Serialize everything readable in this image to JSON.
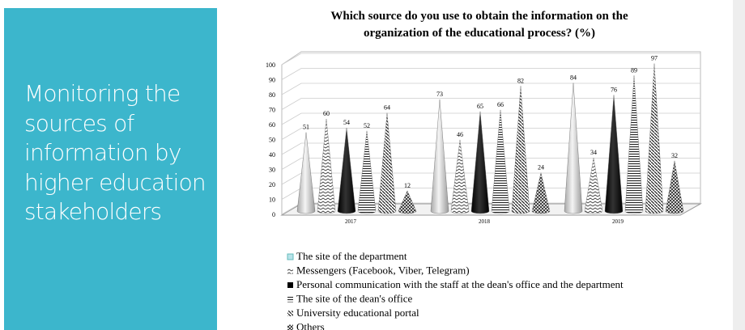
{
  "panel": {
    "text": "Monitoring the sources of information by higher education stakeholders"
  },
  "chart_data": {
    "type": "cone3d",
    "title": "Which source do you use to obtain the information on the organization of the educational process? (%)",
    "categories": [
      "2017",
      "2018",
      "2019"
    ],
    "ylim": [
      0,
      100
    ],
    "yticks": [
      0,
      10,
      20,
      30,
      40,
      50,
      60,
      70,
      80,
      90,
      100
    ],
    "grid": true,
    "series": [
      {
        "name": "The site of the department",
        "color": "#d0d0d0",
        "values": [
          51,
          73,
          84
        ]
      },
      {
        "name": "Messengers (Facebook, Viber, Telegram)",
        "color": "zigzag",
        "values": [
          60,
          46,
          34
        ]
      },
      {
        "name": "Personal communication with the staff at the dean's office and the department",
        "color": "#000000",
        "values": [
          54,
          65,
          76
        ]
      },
      {
        "name": "The site of the dean's office",
        "color": "hlines",
        "values": [
          52,
          66,
          89
        ]
      },
      {
        "name": "University educational portal",
        "color": "diag",
        "values": [
          64,
          82,
          97
        ]
      },
      {
        "name": "Others",
        "color": "cross",
        "values": [
          12,
          24,
          32
        ]
      }
    ]
  }
}
